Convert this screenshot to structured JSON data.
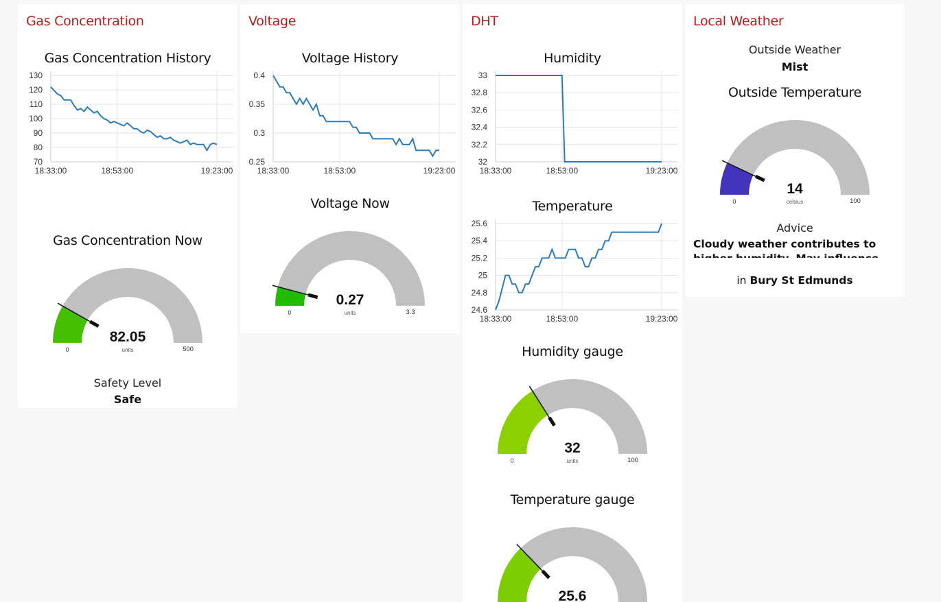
{
  "groups": {
    "gas": {
      "title": "Gas Concentration",
      "history_title": "Gas Concentration History",
      "now_title": "Gas Concentration Now",
      "safety_label": "Safety Level",
      "safety_value": "Safe"
    },
    "voltage": {
      "title": "Voltage",
      "history_title": "Voltage History",
      "now_title": "Voltage Now"
    },
    "dht": {
      "title": "DHT",
      "humidity_title": "Humidity",
      "temperature_title": "Temperature",
      "humidity_gauge_title": "Humidity gauge",
      "temperature_gauge_title": "Temperature gauge"
    },
    "weather": {
      "title": "Local Weather",
      "outside_label": "Outside Weather",
      "outside_value": "Mist",
      "temp_title": "Outside Temperature",
      "advice_label": "Advice",
      "advice_text": "Cloudy weather contributes to higher humidity. May influence output.",
      "location_prefix": "in",
      "location_name": "Bury St Edmunds"
    }
  },
  "colors": {
    "group_title": "#b91c1c",
    "line": "#2b7bb9",
    "gauge_track": "#c0c0c0",
    "needle": "#111111"
  },
  "charts": [
    {
      "id": "gas-history",
      "type": "line",
      "ylim": [
        70,
        130
      ],
      "yticks": [
        "130",
        "120",
        "110",
        "100",
        "90",
        "80",
        "70"
      ],
      "xticks": [
        "18:33:00",
        "18:53:00",
        "19:23:00"
      ],
      "x": [
        0,
        2,
        3,
        4,
        6,
        7,
        8,
        9,
        10,
        11,
        12,
        13,
        14,
        15,
        16,
        17,
        18,
        19,
        20,
        21,
        22,
        23,
        24,
        25,
        26,
        27,
        28,
        29,
        30,
        31,
        32,
        33,
        34,
        35,
        36,
        37,
        38,
        39,
        40,
        41,
        42,
        43,
        44,
        45,
        46,
        47,
        48,
        49,
        50
      ],
      "y": [
        122,
        117,
        116,
        113,
        113,
        109,
        106,
        107,
        105,
        108,
        106,
        104,
        105,
        102,
        100,
        99,
        97,
        98,
        97,
        96,
        95,
        97,
        95,
        93,
        93,
        91,
        90,
        92,
        91,
        89,
        87,
        88,
        86,
        86,
        87,
        85,
        84,
        83,
        84,
        85,
        82,
        83,
        82,
        82,
        82,
        78,
        82,
        83,
        82
      ]
    },
    {
      "id": "voltage-history",
      "type": "line",
      "ylim": [
        0.25,
        0.4
      ],
      "yticks": [
        "0.4",
        "0.35",
        "0.3",
        "0.25"
      ],
      "xticks": [
        "18:33:00",
        "18:53:00",
        "19:23:00"
      ],
      "x": [
        0,
        1,
        2,
        3,
        4,
        5,
        6,
        7,
        8,
        9,
        10,
        11,
        12,
        13,
        14,
        15,
        16,
        17,
        18,
        19,
        20,
        21,
        22,
        23,
        24,
        25,
        26,
        27,
        28,
        29,
        30,
        31,
        32,
        33,
        34,
        35,
        36,
        37,
        38,
        39,
        40,
        41,
        42,
        43,
        44,
        45,
        46,
        47,
        48,
        49,
        50
      ],
      "y": [
        0.4,
        0.39,
        0.38,
        0.38,
        0.37,
        0.37,
        0.36,
        0.35,
        0.36,
        0.35,
        0.36,
        0.35,
        0.34,
        0.35,
        0.33,
        0.33,
        0.32,
        0.32,
        0.32,
        0.32,
        0.32,
        0.32,
        0.32,
        0.32,
        0.31,
        0.31,
        0.3,
        0.3,
        0.3,
        0.3,
        0.29,
        0.29,
        0.29,
        0.29,
        0.29,
        0.29,
        0.29,
        0.28,
        0.29,
        0.28,
        0.28,
        0.28,
        0.29,
        0.27,
        0.27,
        0.27,
        0.27,
        0.27,
        0.26,
        0.27,
        0.27
      ]
    },
    {
      "id": "humidity-history",
      "type": "line",
      "ylim": [
        32,
        33
      ],
      "yticks": [
        "33",
        "32.8",
        "32.6",
        "32.4",
        "32.2",
        "32"
      ],
      "xticks": [
        "18:33:00",
        "18:53:00",
        "19:23:00"
      ],
      "x": [
        0,
        20,
        20.8,
        50
      ],
      "y": [
        33,
        33,
        32,
        32
      ]
    },
    {
      "id": "temperature-history",
      "type": "line",
      "ylim": [
        24.6,
        25.6
      ],
      "yticks": [
        "25.6",
        "25.4",
        "25.2",
        "25",
        "24.8",
        "24.6"
      ],
      "xticks": [
        "18:33:00",
        "18:53:00",
        "19:23:00"
      ],
      "x": [
        0,
        1,
        3,
        4,
        5,
        6,
        7,
        8,
        9,
        10,
        11,
        12,
        13,
        14,
        15,
        16,
        17,
        18,
        19,
        20,
        21,
        22,
        23,
        24,
        25,
        26,
        27,
        28,
        29,
        30,
        31,
        32,
        33,
        34,
        35,
        36,
        37,
        38,
        39,
        40,
        41,
        42,
        43,
        44,
        45,
        46,
        47,
        48,
        49,
        50
      ],
      "y": [
        24.6,
        24.7,
        25.0,
        25.0,
        24.9,
        24.9,
        24.8,
        24.8,
        24.9,
        24.9,
        25.0,
        25.1,
        25.1,
        25.2,
        25.2,
        25.2,
        25.3,
        25.2,
        25.2,
        25.2,
        25.2,
        25.3,
        25.3,
        25.3,
        25.2,
        25.2,
        25.1,
        25.1,
        25.2,
        25.2,
        25.3,
        25.3,
        25.4,
        25.4,
        25.5,
        25.5,
        25.5,
        25.5,
        25.5,
        25.5,
        25.5,
        25.5,
        25.5,
        25.5,
        25.5,
        25.5,
        25.5,
        25.5,
        25.5,
        25.6
      ]
    }
  ],
  "gauges": {
    "gas": {
      "value_label": "82.05",
      "value": 82.05,
      "min": 0,
      "max": 500,
      "min_label": "0",
      "max_label": "500",
      "units": "units",
      "color": "#44c000"
    },
    "voltage": {
      "value_label": "0.27",
      "value": 0.27,
      "min": 0,
      "max": 3.3,
      "min_label": "0",
      "max_label": "3.3",
      "units": "units",
      "color": "#22bb00"
    },
    "humidity": {
      "value_label": "32",
      "value": 32,
      "min": 0,
      "max": 100,
      "min_label": "0",
      "max_label": "100",
      "units": "units",
      "color": "#8cd000"
    },
    "temperature": {
      "value_label": "25.6",
      "value": 25.6,
      "min": 0,
      "max": 100,
      "min_label": "",
      "max_label": "",
      "units": "",
      "color": "#7cce00"
    },
    "outside": {
      "value_label": "14",
      "value": 14,
      "min": 0,
      "max": 100,
      "min_label": "0",
      "max_label": "100",
      "units": "celsius",
      "color": "#4433bb"
    }
  }
}
